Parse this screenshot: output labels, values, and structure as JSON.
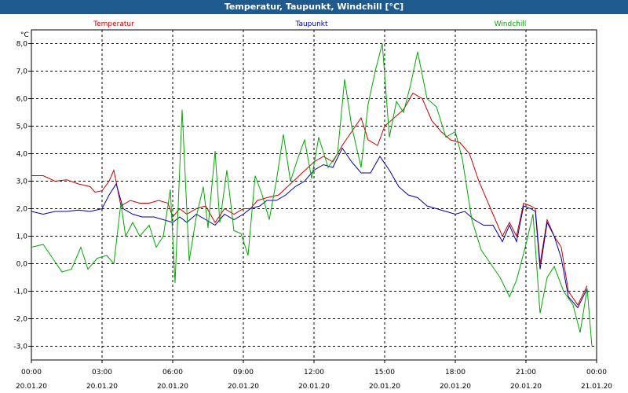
{
  "window": {
    "title": "Temperatur, Taupunkt, Windchill [°C]"
  },
  "chart_data": {
    "type": "line",
    "title": "Temperatur, Taupunkt, Windchill [°C]",
    "ylabel": "°C",
    "ylim": [
      -3.5,
      8.5
    ],
    "yticks": [
      8,
      7,
      6,
      5,
      4,
      3,
      2,
      1,
      0,
      -1,
      -2,
      -3
    ],
    "ytick_labels": [
      "8,0",
      "7,0",
      "6,0",
      "5,0",
      "4,0",
      "3,0",
      "2,0",
      "1,0",
      "0,0",
      "-1,0",
      "-2,0",
      "-3,0"
    ],
    "xlim": [
      0,
      24
    ],
    "xticks": [
      0,
      3,
      6,
      9,
      12,
      15,
      18,
      21,
      24
    ],
    "xtick_labels": [
      [
        "00:00",
        "20.01.20"
      ],
      [
        "03:00",
        "20.01.20"
      ],
      [
        "06:00",
        "20.01.20"
      ],
      [
        "09:00",
        "20.01.20"
      ],
      [
        "12:00",
        "20.01.20"
      ],
      [
        "15:00",
        "20.01.20"
      ],
      [
        "18:00",
        "20.01.20"
      ],
      [
        "21:00",
        "20.01.20"
      ],
      [
        "00:00",
        "21.01.20"
      ]
    ],
    "grid": true,
    "legend_position": "top",
    "series": [
      {
        "name": "Temperatur",
        "color": "#cc0000",
        "points": [
          [
            0,
            3.2
          ],
          [
            0.5,
            3.2
          ],
          [
            1,
            3.0
          ],
          [
            1.5,
            3.05
          ],
          [
            2,
            2.9
          ],
          [
            2.5,
            2.8
          ],
          [
            2.7,
            2.6
          ],
          [
            3,
            2.65
          ],
          [
            3.3,
            3.0
          ],
          [
            3.5,
            3.4
          ],
          [
            3.8,
            2.1
          ],
          [
            4.2,
            2.3
          ],
          [
            4.6,
            2.2
          ],
          [
            5.0,
            2.2
          ],
          [
            5.4,
            2.3
          ],
          [
            5.8,
            2.2
          ],
          [
            6.0,
            1.7
          ],
          [
            6.3,
            2.0
          ],
          [
            6.6,
            1.8
          ],
          [
            7.0,
            2.0
          ],
          [
            7.4,
            2.1
          ],
          [
            7.8,
            1.5
          ],
          [
            8.2,
            2.0
          ],
          [
            8.6,
            1.8
          ],
          [
            9.0,
            2.0
          ],
          [
            9.3,
            2.0
          ],
          [
            9.6,
            2.3
          ],
          [
            10,
            2.4
          ],
          [
            10.5,
            2.5
          ],
          [
            11,
            2.9
          ],
          [
            11.5,
            3.3
          ],
          [
            12,
            3.7
          ],
          [
            12.4,
            3.9
          ],
          [
            12.8,
            3.7
          ],
          [
            13.2,
            4.3
          ],
          [
            13.6,
            4.8
          ],
          [
            14.0,
            5.3
          ],
          [
            14.3,
            4.5
          ],
          [
            14.7,
            4.3
          ],
          [
            15.0,
            5.0
          ],
          [
            15.4,
            5.3
          ],
          [
            15.8,
            5.6
          ],
          [
            16.2,
            6.2
          ],
          [
            16.6,
            6.0
          ],
          [
            17.0,
            5.2
          ],
          [
            17.4,
            4.8
          ],
          [
            17.8,
            4.5
          ],
          [
            18.2,
            4.4
          ],
          [
            18.6,
            4.0
          ],
          [
            19.0,
            3.0
          ],
          [
            19.5,
            2.0
          ],
          [
            20.0,
            1.0
          ],
          [
            20.3,
            1.5
          ],
          [
            20.6,
            1.0
          ],
          [
            20.9,
            2.2
          ],
          [
            21.2,
            2.1
          ],
          [
            21.4,
            2.0
          ],
          [
            21.6,
            0.0
          ],
          [
            21.9,
            1.6
          ],
          [
            22.2,
            1.0
          ],
          [
            22.5,
            0.6
          ],
          [
            22.8,
            -1.0
          ],
          [
            23.2,
            -1.5
          ],
          [
            23.6,
            -0.8
          ]
        ]
      },
      {
        "name": "Taupunkt",
        "color": "#0000aa",
        "points": [
          [
            0,
            1.9
          ],
          [
            0.5,
            1.8
          ],
          [
            1,
            1.9
          ],
          [
            1.5,
            1.9
          ],
          [
            2,
            1.95
          ],
          [
            2.5,
            1.9
          ],
          [
            3,
            2.0
          ],
          [
            3.3,
            2.5
          ],
          [
            3.6,
            2.9
          ],
          [
            3.9,
            2.0
          ],
          [
            4.3,
            1.8
          ],
          [
            4.7,
            1.7
          ],
          [
            5.2,
            1.7
          ],
          [
            5.6,
            1.6
          ],
          [
            6.0,
            1.5
          ],
          [
            6.3,
            1.7
          ],
          [
            6.6,
            1.5
          ],
          [
            7.0,
            1.8
          ],
          [
            7.4,
            1.6
          ],
          [
            7.8,
            1.4
          ],
          [
            8.2,
            1.8
          ],
          [
            8.6,
            1.6
          ],
          [
            9.0,
            1.8
          ],
          [
            9.3,
            2.0
          ],
          [
            9.7,
            2.1
          ],
          [
            10.0,
            2.3
          ],
          [
            10.4,
            2.3
          ],
          [
            10.8,
            2.5
          ],
          [
            11.2,
            2.8
          ],
          [
            11.6,
            3.0
          ],
          [
            12,
            3.4
          ],
          [
            12.4,
            3.6
          ],
          [
            12.8,
            3.5
          ],
          [
            13.2,
            4.2
          ],
          [
            13.6,
            3.7
          ],
          [
            14.0,
            3.3
          ],
          [
            14.4,
            3.3
          ],
          [
            14.8,
            3.9
          ],
          [
            15.2,
            3.4
          ],
          [
            15.6,
            2.8
          ],
          [
            16.0,
            2.5
          ],
          [
            16.4,
            2.4
          ],
          [
            16.8,
            2.1
          ],
          [
            17.2,
            2.0
          ],
          [
            17.6,
            1.9
          ],
          [
            18.0,
            1.8
          ],
          [
            18.4,
            1.9
          ],
          [
            18.8,
            1.6
          ],
          [
            19.2,
            1.4
          ],
          [
            19.6,
            1.4
          ],
          [
            20.0,
            0.8
          ],
          [
            20.3,
            1.4
          ],
          [
            20.6,
            0.8
          ],
          [
            20.9,
            2.1
          ],
          [
            21.2,
            2.0
          ],
          [
            21.4,
            1.9
          ],
          [
            21.6,
            -0.2
          ],
          [
            21.9,
            1.5
          ],
          [
            22.2,
            1.0
          ],
          [
            22.5,
            0.2
          ],
          [
            22.8,
            -1.2
          ],
          [
            23.2,
            -1.6
          ],
          [
            23.6,
            -0.9
          ]
        ]
      },
      {
        "name": "Windchill",
        "color": "#00aa00",
        "points": [
          [
            0,
            0.6
          ],
          [
            0.5,
            0.7
          ],
          [
            0.9,
            0.2
          ],
          [
            1.3,
            -0.3
          ],
          [
            1.7,
            -0.2
          ],
          [
            2.1,
            0.6
          ],
          [
            2.4,
            -0.2
          ],
          [
            2.8,
            0.2
          ],
          [
            3.2,
            0.3
          ],
          [
            3.5,
            0.0
          ],
          [
            3.8,
            2.2
          ],
          [
            4.0,
            1.0
          ],
          [
            4.3,
            1.5
          ],
          [
            4.6,
            1.0
          ],
          [
            5.0,
            1.4
          ],
          [
            5.3,
            0.6
          ],
          [
            5.6,
            1.0
          ],
          [
            5.9,
            2.7
          ],
          [
            6.1,
            -0.7
          ],
          [
            6.4,
            5.6
          ],
          [
            6.7,
            0.1
          ],
          [
            7.0,
            1.7
          ],
          [
            7.3,
            2.8
          ],
          [
            7.5,
            1.3
          ],
          [
            7.8,
            4.1
          ],
          [
            8.0,
            1.5
          ],
          [
            8.3,
            3.4
          ],
          [
            8.6,
            1.2
          ],
          [
            8.9,
            1.1
          ],
          [
            9.2,
            0.3
          ],
          [
            9.5,
            3.2
          ],
          [
            9.8,
            2.5
          ],
          [
            10.1,
            1.6
          ],
          [
            10.4,
            3.0
          ],
          [
            10.7,
            4.7
          ],
          [
            11.0,
            3.0
          ],
          [
            11.3,
            3.8
          ],
          [
            11.6,
            4.5
          ],
          [
            11.9,
            3.1
          ],
          [
            12.2,
            4.6
          ],
          [
            12.6,
            3.5
          ],
          [
            13.0,
            4.0
          ],
          [
            13.3,
            6.7
          ],
          [
            13.6,
            5.0
          ],
          [
            14.0,
            3.5
          ],
          [
            14.3,
            5.8
          ],
          [
            14.6,
            7.0
          ],
          [
            14.9,
            8.0
          ],
          [
            15.2,
            4.6
          ],
          [
            15.5,
            5.9
          ],
          [
            15.8,
            5.5
          ],
          [
            16.1,
            6.5
          ],
          [
            16.4,
            7.7
          ],
          [
            16.8,
            6.0
          ],
          [
            17.2,
            5.7
          ],
          [
            17.6,
            4.6
          ],
          [
            18.0,
            4.8
          ],
          [
            18.3,
            3.8
          ],
          [
            18.7,
            1.6
          ],
          [
            19.1,
            0.5
          ],
          [
            19.5,
            0.0
          ],
          [
            19.9,
            -0.5
          ],
          [
            20.3,
            -1.2
          ],
          [
            20.6,
            -0.6
          ],
          [
            21.0,
            0.7
          ],
          [
            21.3,
            1.8
          ],
          [
            21.6,
            -1.8
          ],
          [
            21.9,
            -0.5
          ],
          [
            22.2,
            -0.1
          ],
          [
            22.6,
            -1.0
          ],
          [
            23.0,
            -1.5
          ],
          [
            23.3,
            -2.5
          ],
          [
            23.6,
            -0.9
          ],
          [
            23.8,
            -3.0
          ]
        ]
      }
    ]
  }
}
